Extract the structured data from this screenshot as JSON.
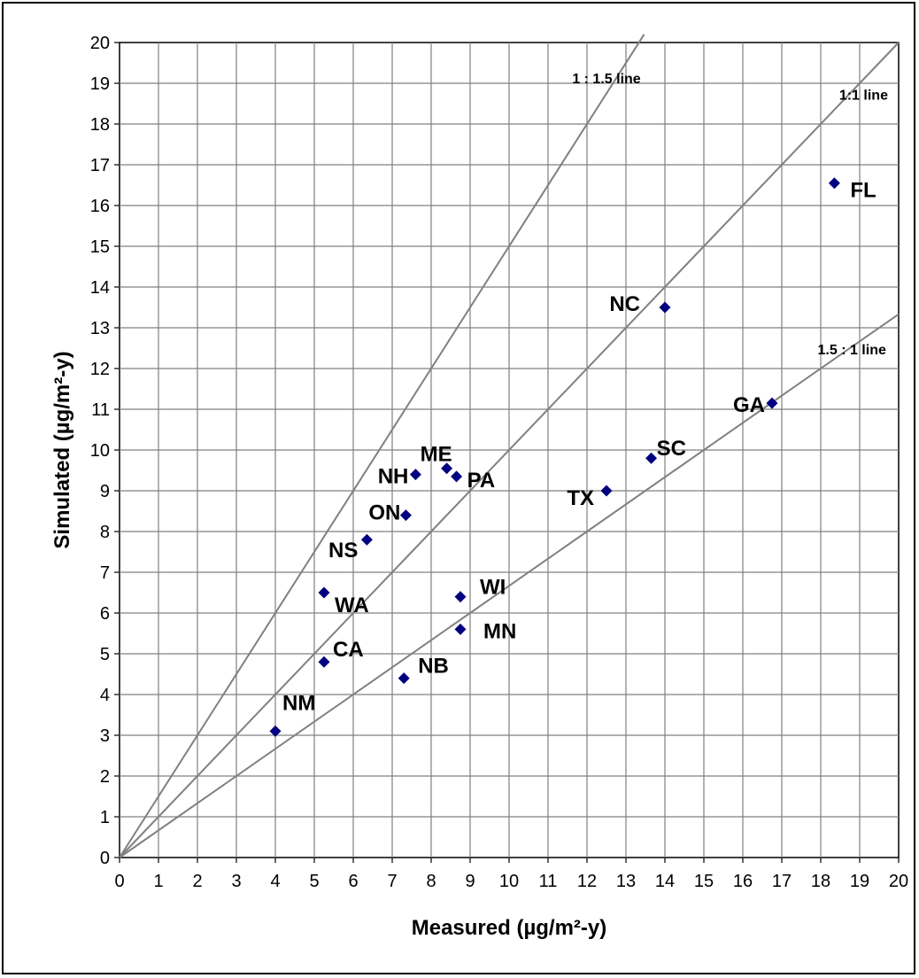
{
  "chart_data": {
    "type": "scatter",
    "xlabel": "Measured (µg/m²-y)",
    "ylabel": "Simulated (µg/m²-y)",
    "xlim": [
      0,
      20
    ],
    "ylim": [
      0,
      20
    ],
    "x_ticks": [
      "0",
      "1",
      "2",
      "3",
      "4",
      "5",
      "6",
      "7",
      "8",
      "9",
      "10",
      "11",
      "12",
      "13",
      "14",
      "15",
      "16",
      "17",
      "18",
      "19",
      "20"
    ],
    "y_ticks": [
      "0",
      "1",
      "2",
      "3",
      "4",
      "5",
      "6",
      "7",
      "8",
      "9",
      "10",
      "11",
      "12",
      "13",
      "14",
      "15",
      "16",
      "17",
      "18",
      "19",
      "20"
    ],
    "grid": true,
    "marker_color": "#000080",
    "points": [
      {
        "label": "FL",
        "x": 18.35,
        "y": 16.55
      },
      {
        "label": "NC",
        "x": 14.0,
        "y": 13.5
      },
      {
        "label": "GA",
        "x": 16.75,
        "y": 11.15
      },
      {
        "label": "SC",
        "x": 13.65,
        "y": 9.8
      },
      {
        "label": "TX",
        "x": 12.5,
        "y": 9.0
      },
      {
        "label": "ME",
        "x": 8.4,
        "y": 9.55
      },
      {
        "label": "NH",
        "x": 7.6,
        "y": 9.4
      },
      {
        "label": "PA",
        "x": 8.65,
        "y": 9.35
      },
      {
        "label": "ON",
        "x": 7.35,
        "y": 8.4
      },
      {
        "label": "NS",
        "x": 6.35,
        "y": 7.8
      },
      {
        "label": "WA",
        "x": 5.25,
        "y": 6.5
      },
      {
        "label": "WI",
        "x": 8.75,
        "y": 6.4
      },
      {
        "label": "MN",
        "x": 8.75,
        "y": 5.6
      },
      {
        "label": "CA",
        "x": 5.25,
        "y": 4.8
      },
      {
        "label": "NB",
        "x": 7.3,
        "y": 4.4
      },
      {
        "label": "NM",
        "x": 4.0,
        "y": 3.1
      }
    ],
    "reference_lines": [
      {
        "label": "1 : 1.5 line",
        "slope": 1.5
      },
      {
        "label": "1:1 line",
        "slope": 1.0
      },
      {
        "label": "1.5 : 1 line",
        "slope": 0.6667
      }
    ]
  }
}
